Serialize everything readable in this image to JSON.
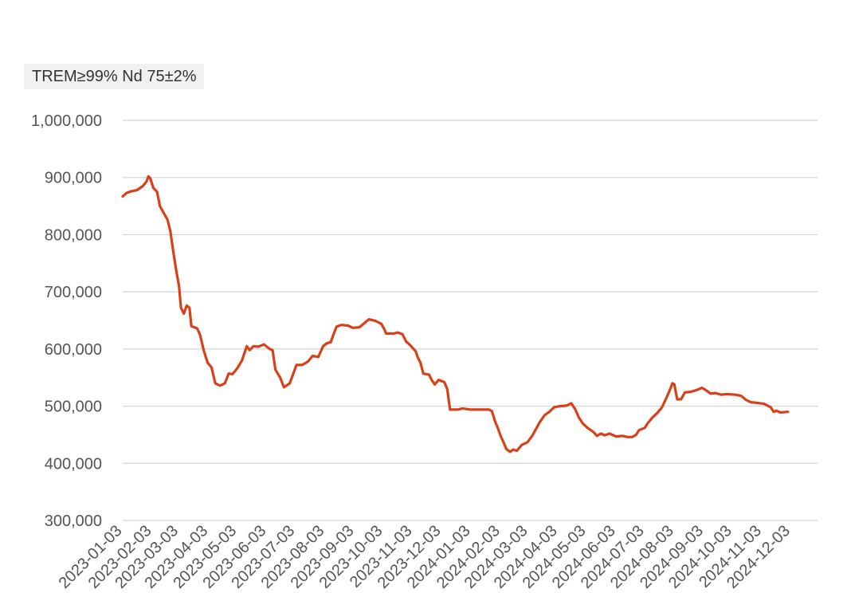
{
  "chart_data": {
    "type": "line",
    "title": "TREM≥99% Nd 75±2%",
    "xlabel": "",
    "ylabel": "",
    "ylim": [
      300000,
      1000000
    ],
    "yticks": [
      300000,
      400000,
      500000,
      600000,
      700000,
      800000,
      900000,
      1000000
    ],
    "ytick_labels": [
      "300,000",
      "400,000",
      "500,000",
      "600,000",
      "700,000",
      "800,000",
      "900,000",
      "1,000,000"
    ],
    "xlim": [
      "2023-01-03",
      "2024-12-31"
    ],
    "xticks": [
      "2023-01-03",
      "2023-02-03",
      "2023-03-03",
      "2023-04-03",
      "2023-05-03",
      "2023-06-03",
      "2023-07-03",
      "2023-08-03",
      "2023-09-03",
      "2023-10-03",
      "2023-11-03",
      "2023-12-03",
      "2024-01-03",
      "2024-02-03",
      "2024-03-03",
      "2024-04-03",
      "2024-05-03",
      "2024-06-03",
      "2024-07-03",
      "2024-08-03",
      "2024-09-03",
      "2024-10-03",
      "2024-11-03",
      "2024-12-03"
    ],
    "grid": true,
    "legend": "none",
    "colors": {
      "line": "#d9401a",
      "grid": "#d4d4d4",
      "text": "#555555"
    },
    "series": [
      {
        "color": "#d9401a",
        "points": [
          [
            "2023-01-03",
            867000
          ],
          [
            "2023-01-07",
            873000
          ],
          [
            "2023-01-12",
            876000
          ],
          [
            "2023-01-18",
            878000
          ],
          [
            "2023-01-24",
            885000
          ],
          [
            "2023-01-28",
            893000
          ],
          [
            "2023-01-30",
            902000
          ],
          [
            "2023-02-01",
            898000
          ],
          [
            "2023-02-04",
            882000
          ],
          [
            "2023-02-08",
            875000
          ],
          [
            "2023-02-11",
            850000
          ],
          [
            "2023-02-15",
            838000
          ],
          [
            "2023-02-19",
            826000
          ],
          [
            "2023-02-22",
            805000
          ],
          [
            "2023-02-25",
            770000
          ],
          [
            "2023-02-28",
            738000
          ],
          [
            "2023-03-03",
            710000
          ],
          [
            "2023-03-05",
            672000
          ],
          [
            "2023-03-08",
            662000
          ],
          [
            "2023-03-11",
            676000
          ],
          [
            "2023-03-14",
            672000
          ],
          [
            "2023-03-16",
            640000
          ],
          [
            "2023-03-22",
            636000
          ],
          [
            "2023-03-25",
            625000
          ],
          [
            "2023-03-29",
            597000
          ],
          [
            "2023-04-02",
            576000
          ],
          [
            "2023-04-06",
            568000
          ],
          [
            "2023-04-10",
            540000
          ],
          [
            "2023-04-15",
            536000
          ],
          [
            "2023-04-20",
            540000
          ],
          [
            "2023-04-24",
            557000
          ],
          [
            "2023-04-28",
            556000
          ],
          [
            "2023-05-03",
            566000
          ],
          [
            "2023-05-08",
            580000
          ],
          [
            "2023-05-13",
            605000
          ],
          [
            "2023-05-16",
            598000
          ],
          [
            "2023-05-20",
            605000
          ],
          [
            "2023-05-25",
            604000
          ],
          [
            "2023-05-31",
            608000
          ],
          [
            "2023-06-06",
            600000
          ],
          [
            "2023-06-09",
            598000
          ],
          [
            "2023-06-12",
            564000
          ],
          [
            "2023-06-17",
            550000
          ],
          [
            "2023-06-21",
            533000
          ],
          [
            "2023-06-27",
            540000
          ],
          [
            "2023-07-01",
            558000
          ],
          [
            "2023-07-04",
            572000
          ],
          [
            "2023-07-10",
            572000
          ],
          [
            "2023-07-16",
            578000
          ],
          [
            "2023-07-21",
            588000
          ],
          [
            "2023-07-27",
            586000
          ],
          [
            "2023-08-01",
            605000
          ],
          [
            "2023-08-05",
            610000
          ],
          [
            "2023-08-09",
            612000
          ],
          [
            "2023-08-12",
            626000
          ],
          [
            "2023-08-15",
            639000
          ],
          [
            "2023-08-20",
            642000
          ],
          [
            "2023-08-27",
            641000
          ],
          [
            "2023-09-01",
            637000
          ],
          [
            "2023-09-08",
            638000
          ],
          [
            "2023-09-13",
            645000
          ],
          [
            "2023-09-18",
            652000
          ],
          [
            "2023-09-25",
            649000
          ],
          [
            "2023-10-01",
            644000
          ],
          [
            "2023-10-04",
            635000
          ],
          [
            "2023-10-06",
            627000
          ],
          [
            "2023-10-14",
            627000
          ],
          [
            "2023-10-18",
            629000
          ],
          [
            "2023-10-23",
            626000
          ],
          [
            "2023-10-27",
            613000
          ],
          [
            "2023-10-31",
            607000
          ],
          [
            "2023-11-06",
            596000
          ],
          [
            "2023-11-08",
            586000
          ],
          [
            "2023-11-11",
            576000
          ],
          [
            "2023-11-14",
            557000
          ],
          [
            "2023-11-20",
            555000
          ],
          [
            "2023-11-23",
            545000
          ],
          [
            "2023-11-26",
            538000
          ],
          [
            "2023-11-30",
            546000
          ],
          [
            "2023-12-06",
            542000
          ],
          [
            "2023-12-09",
            530000
          ],
          [
            "2023-12-12",
            494000
          ],
          [
            "2023-12-20",
            494000
          ],
          [
            "2023-12-25",
            496000
          ],
          [
            "2024-01-03",
            494000
          ],
          [
            "2024-01-12",
            494000
          ],
          [
            "2024-01-22",
            494000
          ],
          [
            "2024-01-25",
            491000
          ],
          [
            "2024-01-28",
            474000
          ],
          [
            "2024-01-31",
            462000
          ],
          [
            "2024-02-03",
            448000
          ],
          [
            "2024-02-06",
            437000
          ],
          [
            "2024-02-09",
            425000
          ],
          [
            "2024-02-13",
            420000
          ],
          [
            "2024-02-16",
            424000
          ],
          [
            "2024-02-20",
            422000
          ],
          [
            "2024-02-25",
            432000
          ],
          [
            "2024-03-02",
            437000
          ],
          [
            "2024-03-07",
            448000
          ],
          [
            "2024-03-11",
            460000
          ],
          [
            "2024-03-15",
            472000
          ],
          [
            "2024-03-20",
            484000
          ],
          [
            "2024-03-25",
            490000
          ],
          [
            "2024-03-30",
            498000
          ],
          [
            "2024-04-05",
            500000
          ],
          [
            "2024-04-12",
            501000
          ],
          [
            "2024-04-17",
            505000
          ],
          [
            "2024-04-21",
            495000
          ],
          [
            "2024-04-25",
            480000
          ],
          [
            "2024-04-29",
            470000
          ],
          [
            "2024-05-04",
            462000
          ],
          [
            "2024-05-10",
            455000
          ],
          [
            "2024-05-14",
            448000
          ],
          [
            "2024-05-18",
            452000
          ],
          [
            "2024-05-22",
            449000
          ],
          [
            "2024-05-27",
            452000
          ],
          [
            "2024-06-03",
            447000
          ],
          [
            "2024-06-10",
            448000
          ],
          [
            "2024-06-15",
            446000
          ],
          [
            "2024-06-20",
            446000
          ],
          [
            "2024-06-24",
            450000
          ],
          [
            "2024-06-27",
            458000
          ],
          [
            "2024-07-03",
            462000
          ],
          [
            "2024-07-06",
            470000
          ],
          [
            "2024-07-11",
            480000
          ],
          [
            "2024-07-16",
            488000
          ],
          [
            "2024-07-21",
            498000
          ],
          [
            "2024-07-25",
            512000
          ],
          [
            "2024-07-29",
            527000
          ],
          [
            "2024-08-01",
            540000
          ],
          [
            "2024-08-03",
            538000
          ],
          [
            "2024-08-06",
            512000
          ],
          [
            "2024-08-10",
            512000
          ],
          [
            "2024-08-14",
            524000
          ],
          [
            "2024-08-20",
            525000
          ],
          [
            "2024-08-26",
            528000
          ],
          [
            "2024-09-01",
            532000
          ],
          [
            "2024-09-05",
            528000
          ],
          [
            "2024-09-10",
            522000
          ],
          [
            "2024-09-15",
            523000
          ],
          [
            "2024-09-21",
            520000
          ],
          [
            "2024-09-27",
            521000
          ],
          [
            "2024-10-06",
            520000
          ],
          [
            "2024-10-12",
            518000
          ],
          [
            "2024-10-17",
            511000
          ],
          [
            "2024-10-22",
            507000
          ],
          [
            "2024-10-28",
            506000
          ],
          [
            "2024-11-05",
            504000
          ],
          [
            "2024-11-12",
            498000
          ],
          [
            "2024-11-15",
            490000
          ],
          [
            "2024-11-18",
            492000
          ],
          [
            "2024-11-22",
            489000
          ],
          [
            "2024-11-30",
            490000
          ]
        ]
      }
    ]
  }
}
